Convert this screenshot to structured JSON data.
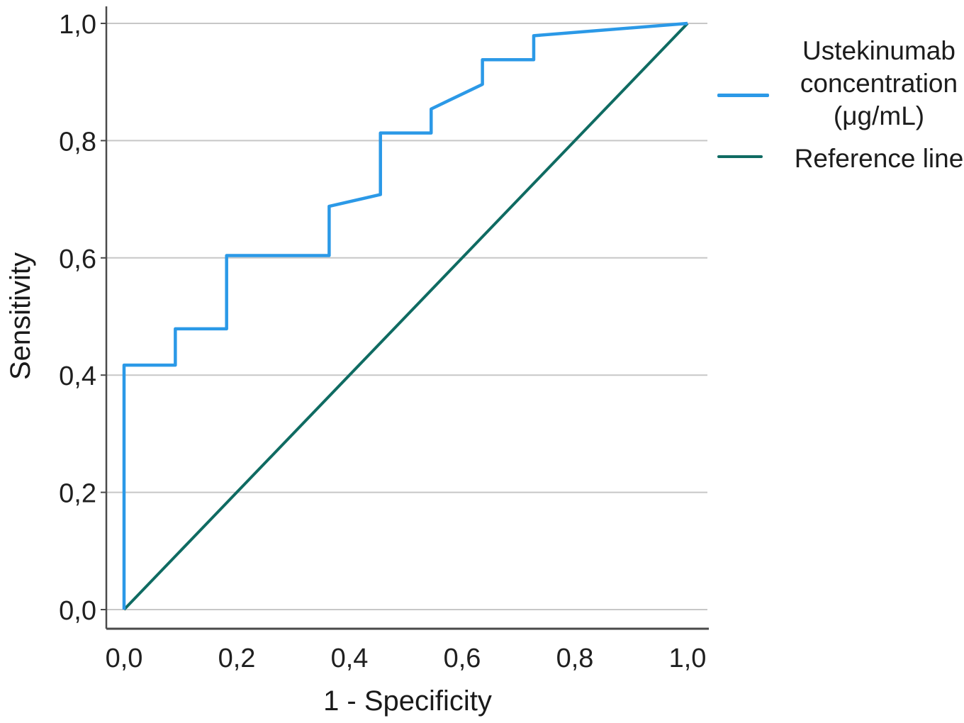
{
  "chart_data": {
    "type": "line",
    "subtype": "roc-curve",
    "title": "",
    "xlabel": "1 - Specificity",
    "ylabel": "Sensitivity",
    "xlim": [
      0,
      1
    ],
    "ylim": [
      0,
      1
    ],
    "grid": "horizontal-only",
    "background_color": "#ffffff",
    "grid_color": "#c7c7c7",
    "axis_color": "#4a4a4a",
    "text_color": "#1f1f1f",
    "decimal_separator": ",",
    "x_ticks": {
      "values": [
        0,
        0.2,
        0.4,
        0.6,
        0.8,
        1.0
      ],
      "labels": [
        "0,0",
        "0,2",
        "0,4",
        "0,6",
        "0,8",
        "1,0"
      ]
    },
    "y_ticks": {
      "values": [
        0,
        0.2,
        0.4,
        0.6,
        0.8,
        1.0
      ],
      "labels": [
        "0,0",
        "0,2",
        "0,4",
        "0,6",
        "0,8",
        "1,0"
      ]
    },
    "series": [
      {
        "name": "Ustekinumab concentration (μg/mL)",
        "data_name": "ustekinumab-roc-curve",
        "color": "#2b99e7",
        "stroke_width": 4.5,
        "points": [
          [
            0.0,
            0.0
          ],
          [
            0.0,
            0.417
          ],
          [
            0.091,
            0.417
          ],
          [
            0.091,
            0.479
          ],
          [
            0.182,
            0.479
          ],
          [
            0.182,
            0.604
          ],
          [
            0.364,
            0.604
          ],
          [
            0.364,
            0.688
          ],
          [
            0.455,
            0.708
          ],
          [
            0.455,
            0.813
          ],
          [
            0.545,
            0.813
          ],
          [
            0.545,
            0.854
          ],
          [
            0.636,
            0.896
          ],
          [
            0.636,
            0.938
          ],
          [
            0.727,
            0.938
          ],
          [
            0.727,
            0.979
          ],
          [
            1.0,
            1.0
          ]
        ]
      },
      {
        "name": "Reference line",
        "data_name": "reference-line",
        "color": "#0f6b62",
        "stroke_width": 4,
        "points": [
          [
            0,
            0
          ],
          [
            1,
            1
          ]
        ]
      }
    ],
    "legend": {
      "position": "right",
      "entries": [
        {
          "label": "Ustekinumab\nconcentration\n(μg/mL)"
        },
        {
          "label": "Reference line"
        }
      ]
    }
  }
}
